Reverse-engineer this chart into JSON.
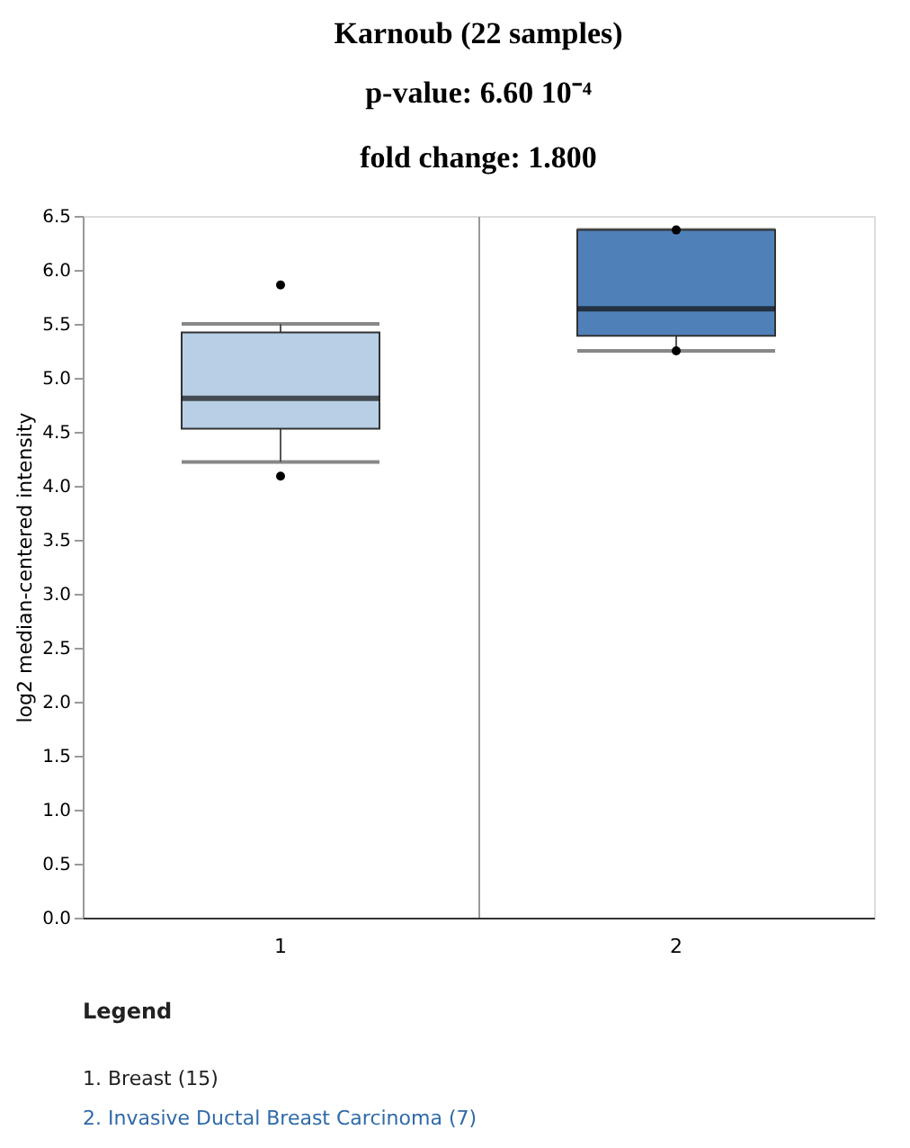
{
  "chart_data": {
    "type": "box",
    "title": "Karnoub (22 samples)",
    "subtitle": "p-value: 6.60 10⁻⁴\nfold change: 1.800",
    "ylabel": "log2 median-centered intensity",
    "categories": [
      "1",
      "2"
    ],
    "boxes": [
      {
        "low": 4.22,
        "q1": 4.53,
        "median": 4.81,
        "q3": 5.42,
        "high": 5.5,
        "outliers": [
          5.86,
          4.09
        ]
      },
      {
        "low": 5.25,
        "q1": 5.39,
        "median": 5.64,
        "q3": 6.37,
        "high": 6.37,
        "outliers": [
          6.37,
          5.25
        ]
      }
    ],
    "colors": [
      "#b8cfe6",
      "#4f81b8"
    ],
    "ylim": [
      0,
      6.5
    ],
    "yticks": [
      {
        "value": 0,
        "label": "0.0"
      },
      0.5,
      {
        "value": 1,
        "label": "1.0"
      },
      1.5,
      {
        "value": 2,
        "label": "2.0"
      },
      2.5,
      {
        "value": 3,
        "label": "3.0"
      },
      3.5,
      {
        "value": 4,
        "label": "4.0"
      },
      4.5,
      {
        "value": 5,
        "label": "5.0"
      },
      5.5,
      {
        "value": 6,
        "label": "6.0"
      },
      6.5
    ],
    "grid": "x",
    "annotations": [
      "Legend",
      "1. Breast (15)",
      "2. Invasive Ductal Breast Carcinoma (7)"
    ]
  }
}
